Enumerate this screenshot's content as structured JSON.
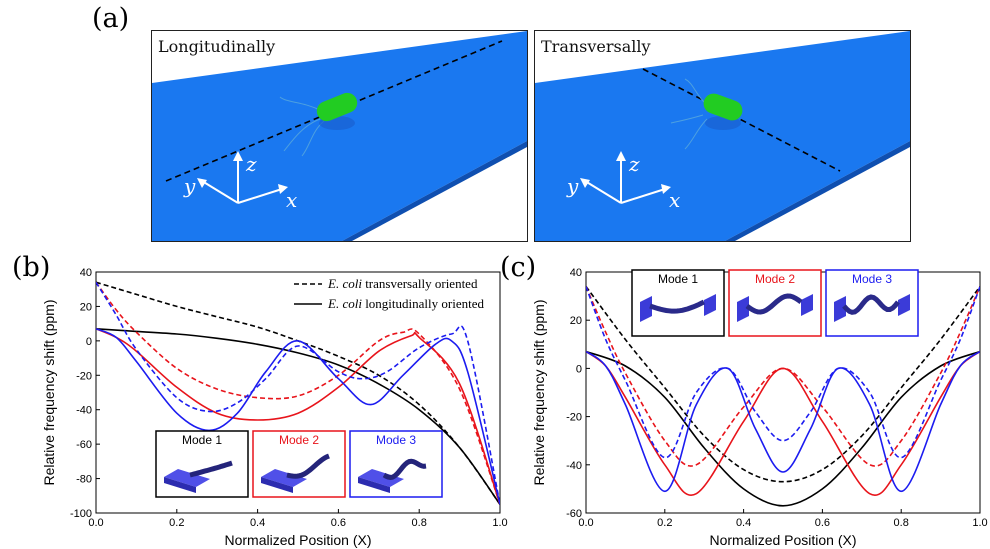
{
  "panels": {
    "a": "(a)",
    "b": "(b)",
    "c": "(c)"
  },
  "scenes": [
    {
      "label": "Longitudinally",
      "axes": {
        "x": "x",
        "y": "y",
        "z": "z"
      }
    },
    {
      "label": "Transversally",
      "axes": {
        "x": "x",
        "y": "y",
        "z": "z"
      }
    }
  ],
  "colors": {
    "mode1": "#000000",
    "mode2": "#e8141b",
    "mode3": "#1c1cf0",
    "surface": "#1a78f0",
    "bacterium": "#22cc22"
  },
  "chart_data": [
    {
      "type": "line",
      "panel": "(b)",
      "xlabel": "Normalized Position (X)",
      "ylabel": "Relative frequency shift (ppm)",
      "xlim": [
        0.0,
        1.0
      ],
      "ylim": [
        -100,
        40
      ],
      "xticks": [
        "0.0",
        "0.2",
        "0.4",
        "0.6",
        "0.8",
        "1.0"
      ],
      "yticks": [
        "-100",
        "-80",
        "-60",
        "-40",
        "-20",
        "0",
        "20",
        "40"
      ],
      "legend": [
        {
          "style": "dashed",
          "prefix": "E. coli",
          "label": " transversally  oriented"
        },
        {
          "style": "solid",
          "prefix": "E. coli",
          "label": " longitudinally oriented"
        }
      ],
      "insets": [
        {
          "label": "Mode 1",
          "color": "#000000"
        },
        {
          "label": "Mode 2",
          "color": "#e8141b"
        },
        {
          "label": "Mode 3",
          "color": "#1c1cf0"
        }
      ],
      "series": [
        {
          "mode": 1,
          "style": "dashed",
          "color": "#000000",
          "x": [
            0.0,
            0.1,
            0.2,
            0.3,
            0.4,
            0.5,
            0.6,
            0.7,
            0.8,
            0.9,
            1.0
          ],
          "y": [
            34,
            27,
            20,
            14,
            8,
            0,
            -9,
            -20,
            -37,
            -62,
            -95
          ]
        },
        {
          "mode": 1,
          "style": "solid",
          "color": "#000000",
          "x": [
            0.0,
            0.1,
            0.2,
            0.3,
            0.4,
            0.5,
            0.6,
            0.7,
            0.8,
            0.9,
            1.0
          ],
          "y": [
            7,
            5.5,
            4,
            1.5,
            -2,
            -7,
            -14,
            -25,
            -40,
            -62,
            -95
          ]
        },
        {
          "mode": 2,
          "style": "dashed",
          "color": "#e8141b",
          "x": [
            0.0,
            0.05,
            0.1,
            0.2,
            0.3,
            0.4,
            0.5,
            0.6,
            0.7,
            0.76,
            0.8,
            0.9,
            1.0
          ],
          "y": [
            34,
            18,
            5,
            -16,
            -28,
            -33,
            -32,
            -20,
            0,
            5,
            4,
            -28,
            -95
          ]
        },
        {
          "mode": 2,
          "style": "solid",
          "color": "#e8141b",
          "x": [
            0.0,
            0.05,
            0.1,
            0.2,
            0.3,
            0.4,
            0.5,
            0.6,
            0.7,
            0.78,
            0.8,
            0.9,
            1.0
          ],
          "y": [
            7,
            2,
            -6,
            -27,
            -42,
            -46,
            -42,
            -27,
            -6,
            3,
            2,
            -25,
            -95
          ]
        },
        {
          "mode": 3,
          "style": "dashed",
          "color": "#1c1cf0",
          "x": [
            0.0,
            0.05,
            0.1,
            0.2,
            0.28,
            0.35,
            0.42,
            0.5,
            0.6,
            0.66,
            0.72,
            0.8,
            0.88,
            0.92,
            1.0
          ],
          "y": [
            34,
            15,
            -5,
            -33,
            -41,
            -36,
            -22,
            -3,
            -18,
            -22,
            -18,
            -4,
            4,
            0,
            -95
          ]
        },
        {
          "mode": 3,
          "style": "solid",
          "color": "#1c1cf0",
          "x": [
            0.0,
            0.05,
            0.1,
            0.2,
            0.28,
            0.35,
            0.42,
            0.5,
            0.6,
            0.68,
            0.76,
            0.84,
            0.88,
            0.92,
            1.0
          ],
          "y": [
            7,
            2,
            -12,
            -42,
            -52,
            -42,
            -18,
            0,
            -22,
            -37,
            -20,
            -2,
            0,
            -18,
            -95
          ]
        }
      ]
    },
    {
      "type": "line",
      "panel": "(c)",
      "xlabel": "Normalized Position (X)",
      "ylabel": "Relative frequency shift (ppm)",
      "xlim": [
        0.0,
        1.0
      ],
      "ylim": [
        -60,
        40
      ],
      "xticks": [
        "0.0",
        "0.2",
        "0.4",
        "0.6",
        "0.8",
        "1.0"
      ],
      "yticks": [
        "-60",
        "-40",
        "-20",
        "0",
        "20",
        "40"
      ],
      "insets": [
        {
          "label": "Mode 1",
          "color": "#000000"
        },
        {
          "label": "Mode 2",
          "color": "#e8141b"
        },
        {
          "label": "Mode 3",
          "color": "#1c1cf0"
        }
      ],
      "series": [
        {
          "mode": 1,
          "style": "dashed",
          "color": "#000000",
          "x": [
            0.0,
            0.1,
            0.2,
            0.3,
            0.4,
            0.5,
            0.6,
            0.7,
            0.8,
            0.9,
            1.0
          ],
          "y": [
            34,
            12,
            -8,
            -28,
            -42,
            -47,
            -42,
            -28,
            -8,
            12,
            34
          ]
        },
        {
          "mode": 1,
          "style": "solid",
          "color": "#000000",
          "x": [
            0.0,
            0.1,
            0.2,
            0.3,
            0.4,
            0.5,
            0.6,
            0.7,
            0.8,
            0.9,
            1.0
          ],
          "y": [
            7,
            1,
            -12,
            -33,
            -50,
            -57,
            -50,
            -33,
            -12,
            1,
            7
          ]
        },
        {
          "mode": 2,
          "style": "dashed",
          "color": "#e8141b",
          "x": [
            0.0,
            0.05,
            0.1,
            0.2,
            0.28,
            0.4,
            0.5,
            0.6,
            0.72,
            0.8,
            0.9,
            0.95,
            1.0
          ],
          "y": [
            34,
            15,
            -2,
            -30,
            -40,
            -16,
            0,
            -16,
            -40,
            -30,
            -2,
            15,
            34
          ]
        },
        {
          "mode": 2,
          "style": "solid",
          "color": "#e8141b",
          "x": [
            0.0,
            0.05,
            0.1,
            0.2,
            0.28,
            0.4,
            0.5,
            0.6,
            0.72,
            0.8,
            0.9,
            0.95,
            1.0
          ],
          "y": [
            7,
            1,
            -12,
            -40,
            -52,
            -22,
            0,
            -22,
            -52,
            -40,
            -12,
            1,
            7
          ]
        },
        {
          "mode": 3,
          "style": "dashed",
          "color": "#1c1cf0",
          "x": [
            0.0,
            0.05,
            0.1,
            0.2,
            0.28,
            0.36,
            0.43,
            0.5,
            0.57,
            0.64,
            0.72,
            0.8,
            0.9,
            0.95,
            1.0
          ],
          "y": [
            34,
            12,
            -5,
            -37,
            -10,
            0,
            -18,
            -30,
            -18,
            0,
            -10,
            -37,
            -5,
            12,
            34
          ]
        },
        {
          "mode": 3,
          "style": "solid",
          "color": "#1c1cf0",
          "x": [
            0.0,
            0.05,
            0.1,
            0.2,
            0.28,
            0.36,
            0.43,
            0.5,
            0.57,
            0.64,
            0.72,
            0.8,
            0.9,
            0.95,
            1.0
          ],
          "y": [
            7,
            1,
            -15,
            -51,
            -15,
            0,
            -25,
            -43,
            -25,
            0,
            -15,
            -51,
            -15,
            1,
            7
          ]
        }
      ]
    }
  ]
}
